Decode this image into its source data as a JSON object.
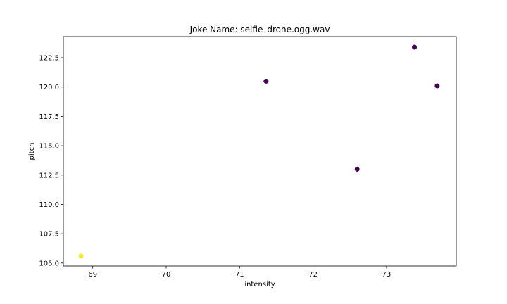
{
  "chart_data": {
    "type": "scatter",
    "title": "Joke Name: selfie_drone.ogg.wav",
    "xlabel": "intensity",
    "ylabel": "pitch",
    "xlim": [
      68.6,
      73.95
    ],
    "ylim": [
      104.75,
      124.3
    ],
    "xticks": [
      69,
      70,
      71,
      72,
      73
    ],
    "yticks": [
      105.0,
      107.5,
      110.0,
      112.5,
      115.0,
      117.5,
      120.0,
      122.5
    ],
    "ytick_labels": [
      "105.0",
      "107.5",
      "110.0",
      "112.5",
      "115.0",
      "117.5",
      "120.0",
      "122.5"
    ],
    "grid": false,
    "points": [
      {
        "x": 68.84,
        "y": 105.6,
        "color": "#fde725"
      },
      {
        "x": 71.36,
        "y": 120.5,
        "color": "#440154"
      },
      {
        "x": 72.6,
        "y": 113.0,
        "color": "#440154"
      },
      {
        "x": 73.38,
        "y": 123.4,
        "color": "#440154"
      },
      {
        "x": 73.69,
        "y": 120.1,
        "color": "#440154"
      }
    ]
  }
}
